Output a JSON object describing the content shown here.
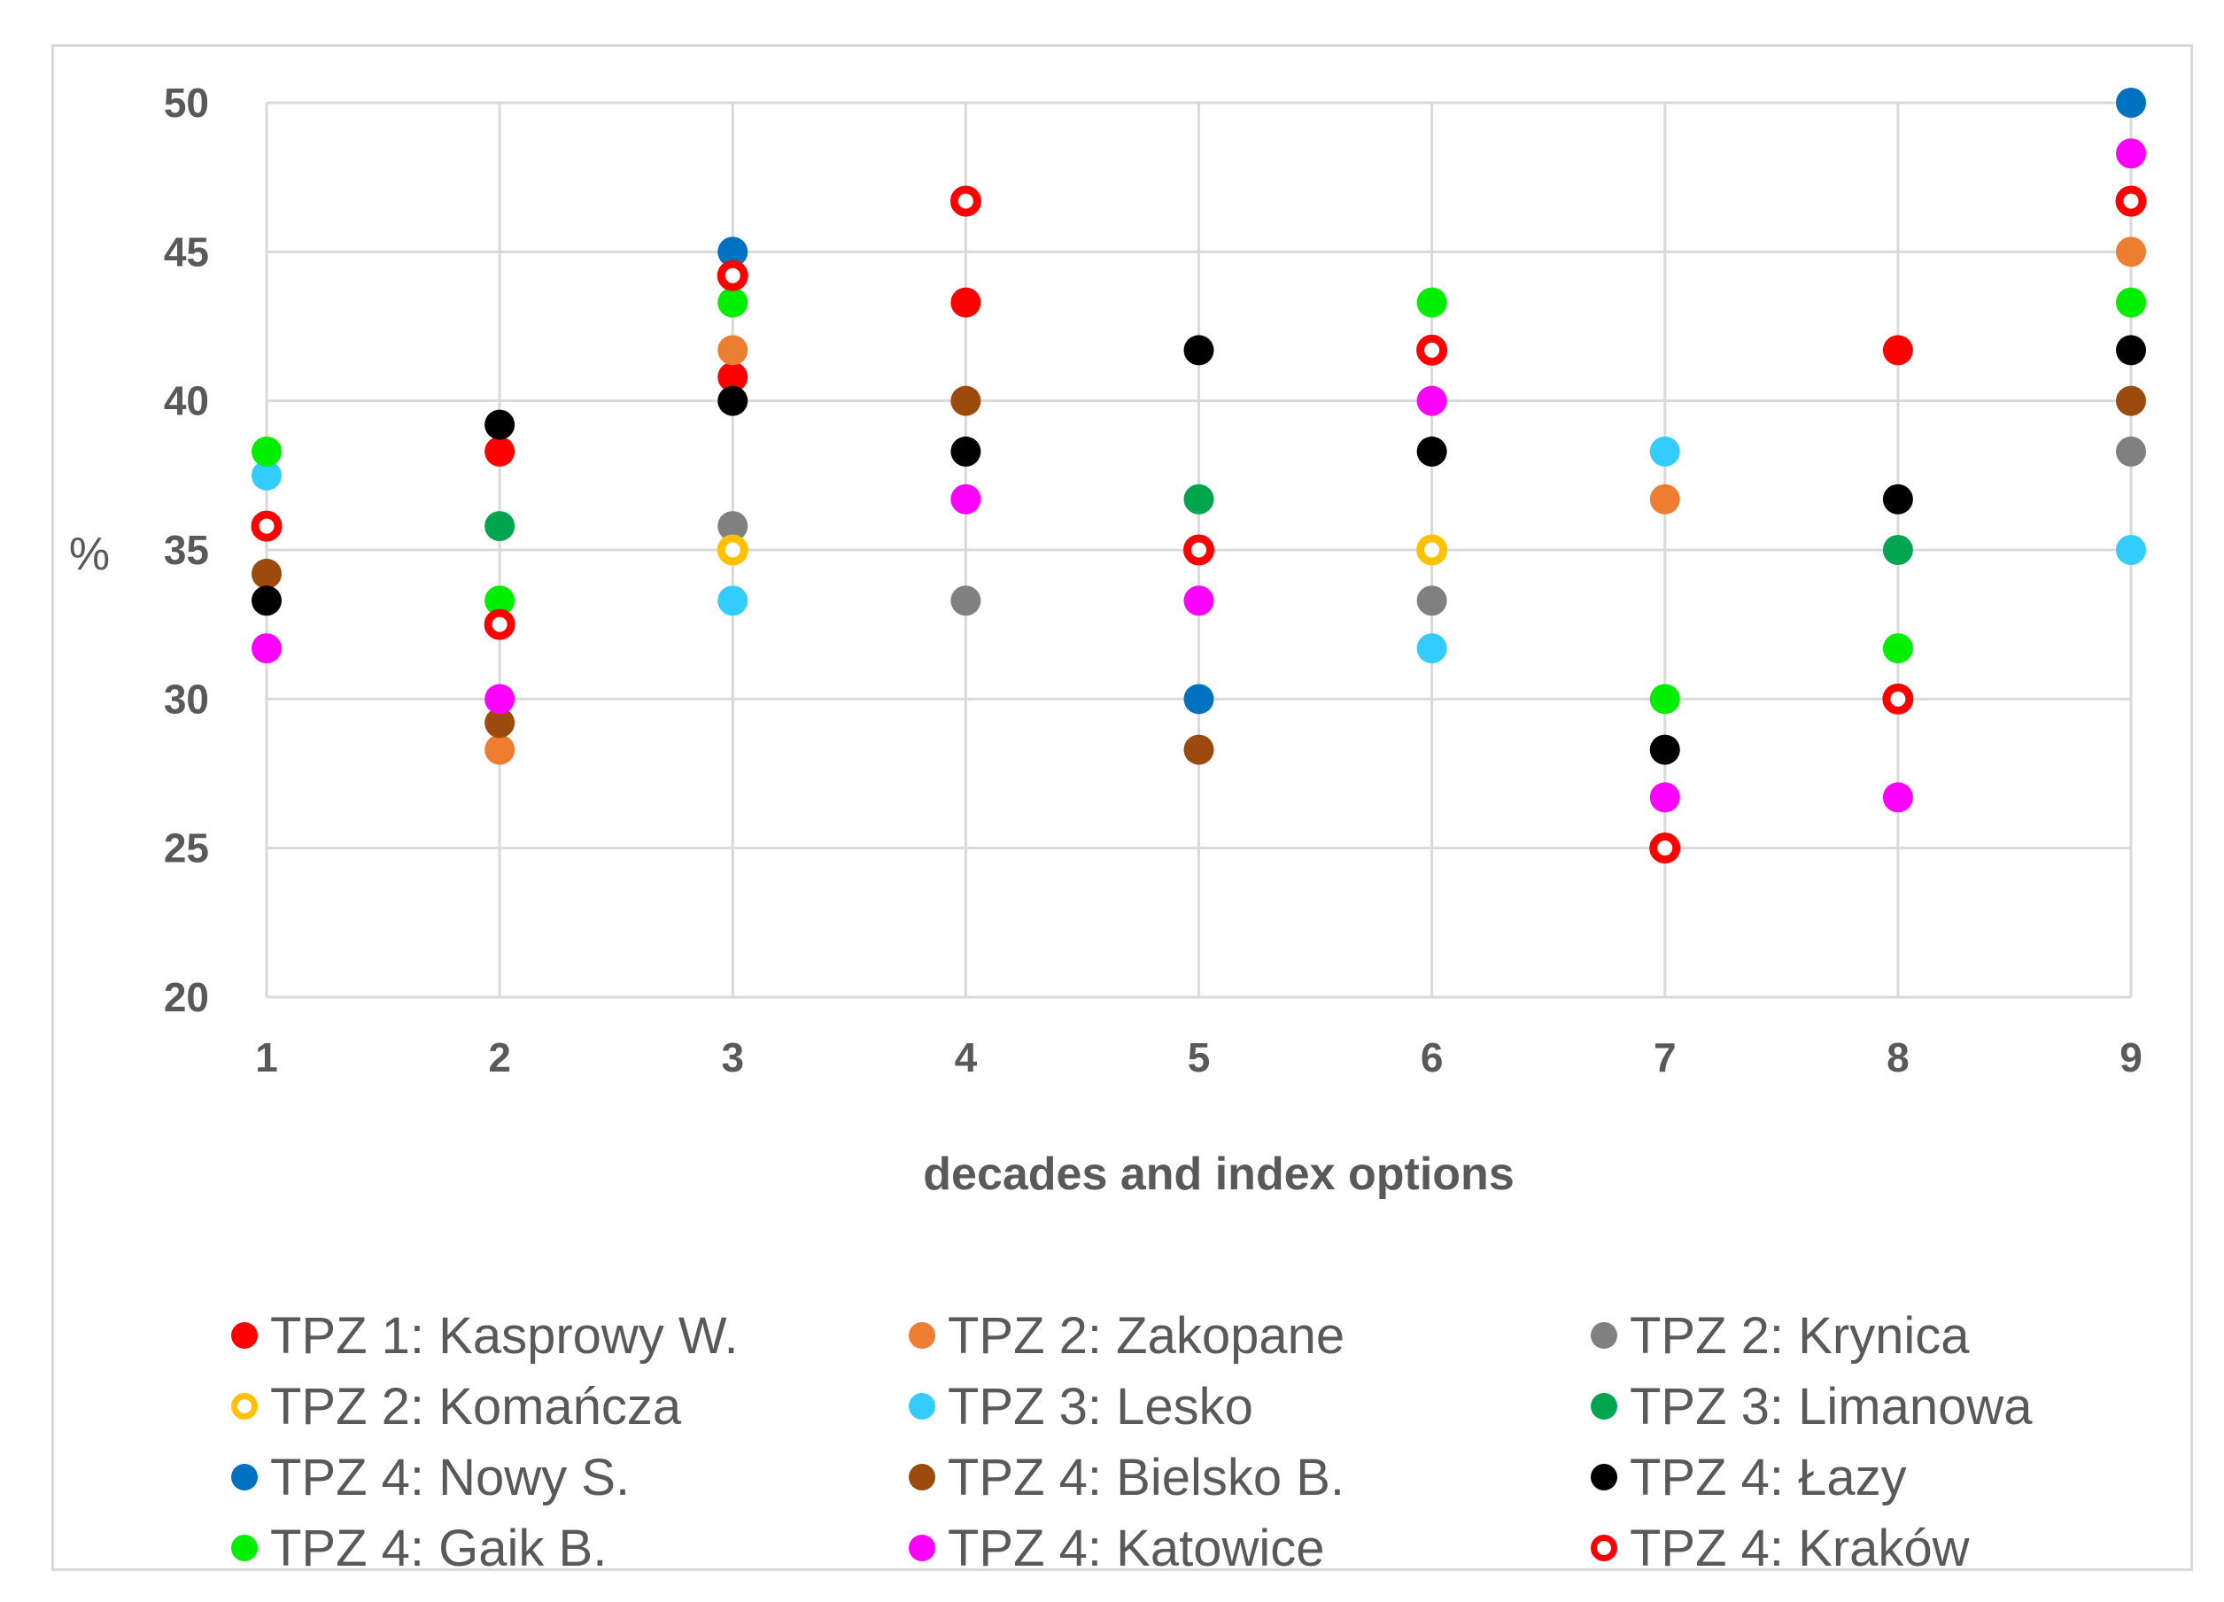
{
  "chart_data": {
    "type": "scatter",
    "title": "",
    "xlabel": "decades and index options",
    "ylabel": "%",
    "xlim": [
      1,
      9
    ],
    "ylim": [
      20,
      50
    ],
    "x_ticks": [
      "1",
      "2",
      "3",
      "4",
      "5",
      "6",
      "7",
      "8",
      "9"
    ],
    "y_ticks": [
      "20",
      "25",
      "30",
      "35",
      "40",
      "45",
      "50"
    ],
    "grid": true,
    "legend_position": "bottom",
    "series": [
      {
        "name": "TPZ 1: Kasprowy W.",
        "color": "#ff0000",
        "marker": "filled",
        "points": [
          [
            2,
            38.3
          ],
          [
            3,
            40.8
          ],
          [
            4,
            43.3
          ],
          [
            8,
            41.7
          ]
        ]
      },
      {
        "name": "TPZ 2: Zakopane",
        "color": "#ed7d31",
        "marker": "filled",
        "points": [
          [
            2,
            28.3
          ],
          [
            3,
            41.7
          ],
          [
            7,
            36.7
          ],
          [
            9,
            45
          ]
        ]
      },
      {
        "name": "TPZ 2: Krynica",
        "color": "#808080",
        "marker": "filled",
        "points": [
          [
            3,
            35.8
          ],
          [
            4,
            33.3
          ],
          [
            6,
            33.3
          ],
          [
            9,
            38.3
          ]
        ]
      },
      {
        "name": "TPZ 2: Komańcza",
        "color": "#ffc000",
        "marker": "hollow",
        "points": [
          [
            3,
            35
          ],
          [
            6,
            35
          ]
        ]
      },
      {
        "name": "TPZ 3: Lesko",
        "color": "#33ccff",
        "marker": "filled",
        "points": [
          [
            1,
            37.5
          ],
          [
            3,
            33.3
          ],
          [
            6,
            31.7
          ],
          [
            7,
            38.3
          ],
          [
            9,
            35
          ]
        ]
      },
      {
        "name": "TPZ 3: Limanowa",
        "color": "#00a550",
        "marker": "filled",
        "points": [
          [
            2,
            35.8
          ],
          [
            5,
            36.7
          ],
          [
            8,
            35
          ]
        ]
      },
      {
        "name": "TPZ 4: Nowy S.",
        "color": "#0070c0",
        "marker": "filled",
        "points": [
          [
            3,
            45
          ],
          [
            5,
            30
          ],
          [
            9,
            50
          ]
        ]
      },
      {
        "name": "TPZ 4: Bielsko B.",
        "color": "#9c4a0e",
        "marker": "filled",
        "points": [
          [
            1,
            34.2
          ],
          [
            2,
            29.2
          ],
          [
            4,
            40
          ],
          [
            5,
            28.3
          ],
          [
            9,
            40
          ]
        ]
      },
      {
        "name": "TPZ 4: Łazy",
        "color": "#000000",
        "marker": "filled",
        "points": [
          [
            1,
            33.3
          ],
          [
            2,
            39.2
          ],
          [
            3,
            40
          ],
          [
            4,
            38.3
          ],
          [
            5,
            41.7
          ],
          [
            6,
            38.3
          ],
          [
            7,
            28.3
          ],
          [
            8,
            36.7
          ],
          [
            9,
            41.7
          ]
        ]
      },
      {
        "name": "TPZ 4: Gaik B.",
        "color": "#00ee00",
        "marker": "filled",
        "points": [
          [
            1,
            38.3
          ],
          [
            2,
            33.3
          ],
          [
            3,
            43.3
          ],
          [
            6,
            43.3
          ],
          [
            7,
            30
          ],
          [
            8,
            31.7
          ],
          [
            9,
            43.3
          ]
        ]
      },
      {
        "name": "TPZ 4: Katowice",
        "color": "#ff00ff",
        "marker": "filled",
        "points": [
          [
            1,
            31.7
          ],
          [
            2,
            30
          ],
          [
            4,
            36.7
          ],
          [
            5,
            33.3
          ],
          [
            6,
            40
          ],
          [
            7,
            26.7
          ],
          [
            8,
            26.7
          ],
          [
            9,
            48.3
          ]
        ]
      },
      {
        "name": "TPZ 4: Kraków",
        "color": "#ff0000",
        "marker": "hollow",
        "points": [
          [
            1,
            35.8
          ],
          [
            2,
            32.5
          ],
          [
            3,
            44.2
          ],
          [
            4,
            46.7
          ],
          [
            5,
            35
          ],
          [
            6,
            41.7
          ],
          [
            7,
            25
          ],
          [
            8,
            30
          ],
          [
            9,
            46.7
          ]
        ]
      }
    ]
  }
}
